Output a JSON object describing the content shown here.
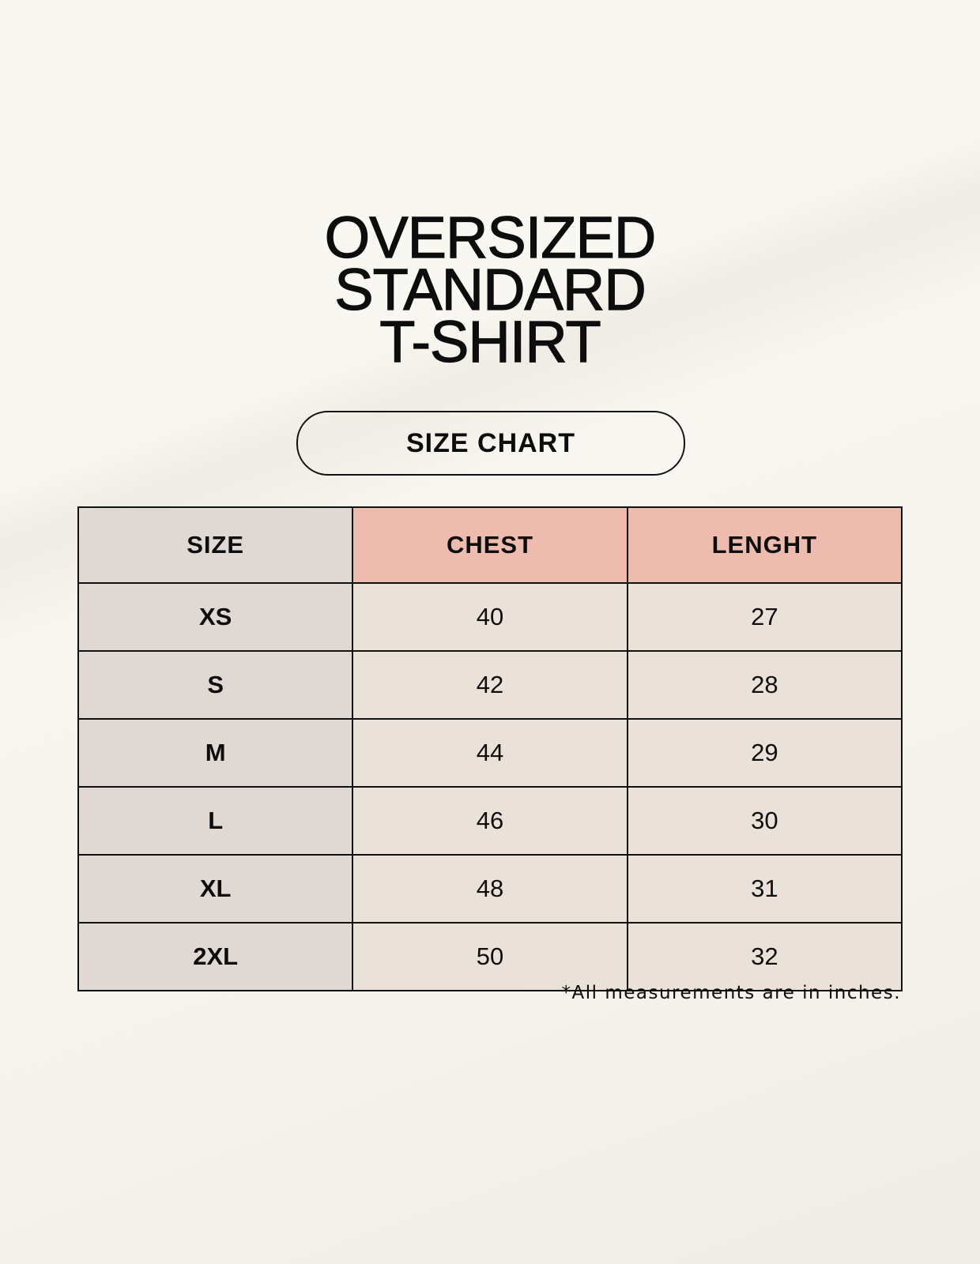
{
  "title": {
    "line1": "OVERSIZED",
    "line2": "STANDARD",
    "line3": "T-SHIRT"
  },
  "badge": "SIZE CHART",
  "table": {
    "headers": [
      "SIZE",
      "CHEST",
      "LENGHT"
    ],
    "rows": [
      [
        "XS",
        "40",
        "27"
      ],
      [
        "S",
        "42",
        "28"
      ],
      [
        "M",
        "44",
        "29"
      ],
      [
        "L",
        "46",
        "30"
      ],
      [
        "XL",
        "48",
        "31"
      ],
      [
        "2XL",
        "50",
        "32"
      ]
    ]
  },
  "footnote": "*All measurements are in inches.",
  "colors": {
    "size_column": "#e0d8d2",
    "header_accent": "#edbcae",
    "value_cells": "#eae2d8"
  }
}
